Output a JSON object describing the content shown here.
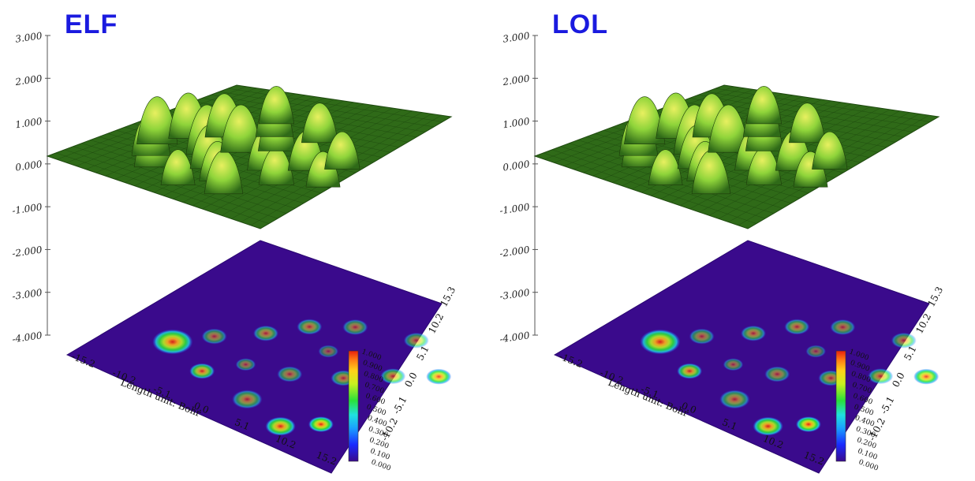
{
  "panels": [
    {
      "id": "elf",
      "title": "ELF"
    },
    {
      "id": "lol",
      "title": "LOL"
    }
  ],
  "chart_data": [
    {
      "type": "heatmap",
      "title": "ELF",
      "z_ticks": [
        "3.000",
        "2.000",
        "1.000",
        "0.000",
        "-1.000",
        "-2.000",
        "-3.000",
        "-4.000"
      ],
      "x_ticks": [
        "-15.2",
        "-10.2",
        "-5.1",
        "0.0",
        "5.1",
        "10.2",
        "15.2"
      ],
      "y_ticks": [
        "-10.2",
        "-5.1",
        "0.0",
        "5.1",
        "10.2",
        "15.3"
      ],
      "xlabel": "Length unit: Bohr",
      "colorbar_ticks": [
        "1.000",
        "0.900",
        "0.800",
        "0.700",
        "0.600",
        "0.500",
        "0.400",
        "0.300",
        "0.200",
        "0.100",
        "0.000"
      ],
      "colorbar_range": [
        0,
        1
      ],
      "colors": {
        "low": "#3a0a8c",
        "mid": "#2adf3a",
        "high": "#e8200e",
        "surface": "#8fd43a",
        "plane": "#2f6a18"
      }
    },
    {
      "type": "heatmap",
      "title": "LOL",
      "z_ticks": [
        "3.000",
        "2.000",
        "1.000",
        "0.000",
        "-1.000",
        "-2.000",
        "-3.000",
        "-4.000"
      ],
      "x_ticks": [
        "-15.2",
        "-10.2",
        "-5.1",
        "0.0",
        "5.1",
        "10.2",
        "15.2"
      ],
      "y_ticks": [
        "-10.2",
        "-5.1",
        "0.0",
        "5.1",
        "10.2",
        "15.3"
      ],
      "xlabel": "Length unit: Bohr",
      "colorbar_ticks": [
        "1.000",
        "0.900",
        "0.800",
        "0.700",
        "0.600",
        "0.500",
        "0.400",
        "0.300",
        "0.200",
        "0.100",
        "0.000"
      ],
      "colorbar_range": [
        0,
        1
      ],
      "colors": {
        "low": "#3a0a8c",
        "mid": "#2adf3a",
        "high": "#e8200e",
        "surface": "#8fd43a",
        "plane": "#2f6a18"
      }
    }
  ]
}
